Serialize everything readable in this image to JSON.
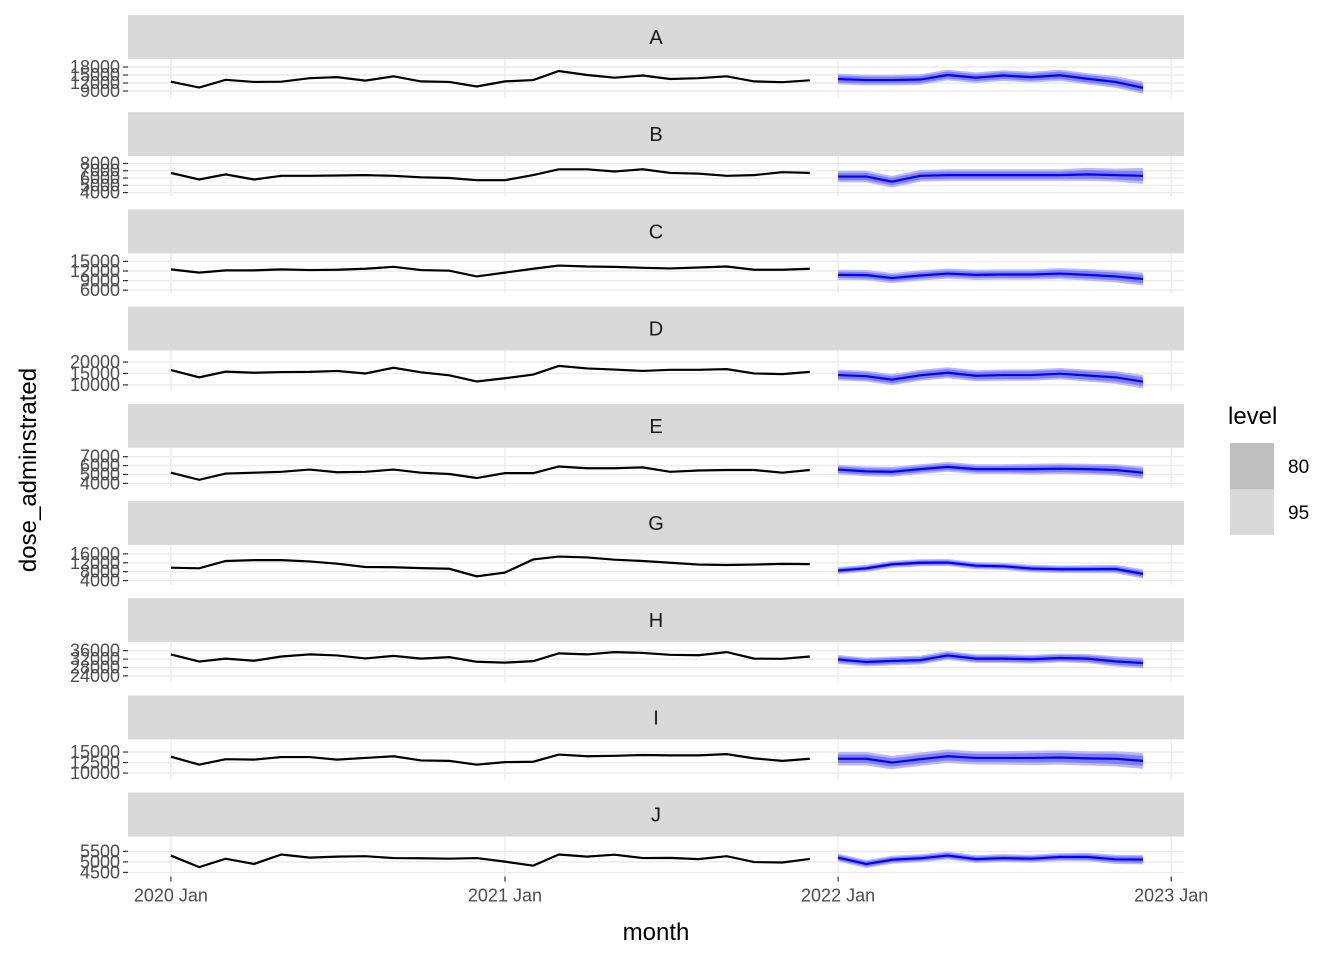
{
  "chart_data": {
    "type": "line",
    "xlabel": "month",
    "ylabel": "dose_adminstrated",
    "x_ticks": [
      "2020 Jan",
      "2021 Jan",
      "2022 Jan",
      "2023 Jan"
    ],
    "x_range": [
      "2019-11-15",
      "2023-01-15"
    ],
    "history_months": [
      "2020-01",
      "2020-02",
      "2020-03",
      "2020-04",
      "2020-05",
      "2020-06",
      "2020-07",
      "2020-08",
      "2020-09",
      "2020-10",
      "2020-11",
      "2020-12",
      "2021-01",
      "2021-02",
      "2021-03",
      "2021-04",
      "2021-05",
      "2021-06",
      "2021-07",
      "2021-08",
      "2021-09",
      "2021-10",
      "2021-11",
      "2021-12"
    ],
    "forecast_months": [
      "2022-01",
      "2022-02",
      "2022-03",
      "2022-04",
      "2022-05",
      "2022-06",
      "2022-07",
      "2022-08",
      "2022-09",
      "2022-10",
      "2022-11",
      "2022-12"
    ],
    "legend": {
      "title": "level",
      "position": "right",
      "items": [
        {
          "label": "80",
          "color": "#bebebe"
        },
        {
          "label": "95",
          "color": "#d9d9d9"
        }
      ]
    },
    "colors": {
      "history": "#000000",
      "forecast": "#0000ff",
      "band80": "#7f7ff0",
      "band95": "#b9b9f5",
      "strip": "#d9d9d9"
    },
    "grid": true,
    "panels": [
      {
        "label": "A",
        "y_ticks": [
          "9000",
          "12000",
          "15000",
          "18000"
        ],
        "ylim": [
          6000,
          21000
        ],
        "history": [
          12500,
          10300,
          13200,
          12400,
          12500,
          13800,
          14200,
          12900,
          14500,
          12600,
          12400,
          10700,
          12600,
          13100,
          16500,
          15000,
          14000,
          14800,
          13500,
          13800,
          14500,
          12600,
          12300,
          13000
        ],
        "forecast": [
          13500,
          13100,
          13100,
          13300,
          15000,
          14000,
          14800,
          14200,
          14900,
          13600,
          12400,
          10200
        ],
        "lo80": [
          12200,
          11800,
          11800,
          12000,
          13700,
          12700,
          13500,
          12900,
          13500,
          12200,
          11000,
          8700
        ],
        "hi80": [
          14800,
          14400,
          14400,
          14600,
          16300,
          15300,
          16100,
          15500,
          16300,
          15000,
          13800,
          11700
        ],
        "lo95": [
          11500,
          11100,
          11100,
          11300,
          13000,
          12000,
          12800,
          12200,
          12800,
          11500,
          10200,
          7900
        ],
        "hi95": [
          15500,
          15100,
          15100,
          15300,
          17000,
          16000,
          16800,
          16200,
          17000,
          15700,
          14600,
          12500
        ]
      },
      {
        "label": "B",
        "y_ticks": [
          "4000",
          "5000",
          "6000",
          "7000",
          "8000"
        ],
        "ylim": [
          3500,
          9000
        ],
        "history": [
          6700,
          5800,
          6500,
          5800,
          6300,
          6300,
          6350,
          6400,
          6300,
          6100,
          6000,
          5700,
          5700,
          6400,
          7200,
          7200,
          6900,
          7200,
          6700,
          6600,
          6300,
          6400,
          6800,
          6700
        ],
        "forecast": [
          6200,
          6200,
          5500,
          6300,
          6400,
          6400,
          6400,
          6400,
          6400,
          6500,
          6400,
          6300
        ],
        "lo80": [
          5700,
          5700,
          5000,
          5800,
          5900,
          5900,
          5900,
          5900,
          5900,
          5900,
          5800,
          5600
        ],
        "hi80": [
          6700,
          6700,
          6000,
          6800,
          6900,
          6900,
          6900,
          6900,
          6900,
          7100,
          7000,
          7000
        ],
        "lo95": [
          5400,
          5400,
          4700,
          5500,
          5600,
          5600,
          5600,
          5600,
          5600,
          5600,
          5500,
          5200
        ],
        "hi95": [
          7000,
          7000,
          6300,
          7100,
          7200,
          7200,
          7200,
          7200,
          7200,
          7400,
          7300,
          7400
        ]
      },
      {
        "label": "C",
        "y_ticks": [
          "6000",
          "9000",
          "12000",
          "15000"
        ],
        "ylim": [
          5000,
          17500
        ],
        "history": [
          12500,
          11500,
          12200,
          12200,
          12500,
          12300,
          12400,
          12700,
          13300,
          12300,
          12100,
          10300,
          11500,
          12700,
          13700,
          13400,
          13300,
          13000,
          12800,
          13100,
          13400,
          12400,
          12400,
          12700
        ],
        "forecast": [
          10800,
          10700,
          9800,
          10600,
          11200,
          10800,
          10900,
          10900,
          11200,
          10800,
          10300,
          9500
        ],
        "lo80": [
          9800,
          9700,
          8800,
          9600,
          10200,
          9800,
          9900,
          9900,
          10100,
          9600,
          9100,
          8200
        ],
        "hi80": [
          11800,
          11700,
          10800,
          11600,
          12200,
          11800,
          11900,
          11900,
          12300,
          12000,
          11500,
          10800
        ],
        "lo95": [
          9200,
          9100,
          8200,
          9000,
          9600,
          9200,
          9300,
          9300,
          9500,
          9000,
          8400,
          7500
        ],
        "hi95": [
          12400,
          12300,
          11400,
          12200,
          12800,
          12400,
          12500,
          12500,
          12900,
          12600,
          12200,
          11500
        ]
      },
      {
        "label": "D",
        "y_ticks": [
          "10000",
          "15000",
          "20000"
        ],
        "ylim": [
          7500,
          25000
        ],
        "history": [
          16500,
          13300,
          15800,
          15300,
          15600,
          15700,
          16100,
          15000,
          17500,
          15500,
          14200,
          11500,
          12900,
          14500,
          18300,
          17200,
          16700,
          16100,
          16600,
          16600,
          16900,
          15000,
          14700,
          15700
        ],
        "forecast": [
          14300,
          13800,
          12300,
          14200,
          15300,
          14000,
          14300,
          14300,
          14900,
          14100,
          13300,
          11400
        ],
        "lo80": [
          12700,
          12200,
          10700,
          12600,
          13700,
          12400,
          12600,
          12600,
          13200,
          12300,
          11400,
          9500
        ],
        "hi80": [
          15900,
          15400,
          13900,
          15800,
          16900,
          15600,
          16000,
          16000,
          16600,
          15900,
          15200,
          13300
        ],
        "lo95": [
          11900,
          11400,
          9900,
          11800,
          12900,
          11600,
          11800,
          11800,
          12400,
          11500,
          10500,
          8500
        ],
        "hi95": [
          16700,
          16200,
          14700,
          16600,
          17700,
          16400,
          16800,
          16800,
          17400,
          16700,
          16100,
          14300
        ]
      },
      {
        "label": "E",
        "y_ticks": [
          "4000",
          "5000",
          "6000",
          "7000"
        ],
        "ylim": [
          3500,
          8000
        ],
        "history": [
          5200,
          4400,
          5100,
          5200,
          5300,
          5550,
          5250,
          5300,
          5550,
          5200,
          5050,
          4600,
          5150,
          5150,
          5900,
          5700,
          5700,
          5800,
          5300,
          5450,
          5500,
          5500,
          5200,
          5500
        ],
        "forecast": [
          5550,
          5350,
          5300,
          5600,
          5850,
          5600,
          5600,
          5600,
          5650,
          5600,
          5500,
          5200
        ],
        "lo80": [
          5200,
          5000,
          4950,
          5250,
          5500,
          5250,
          5250,
          5200,
          5250,
          5200,
          5050,
          4750
        ],
        "hi80": [
          5900,
          5700,
          5650,
          5950,
          6200,
          5950,
          5950,
          6000,
          6050,
          6000,
          5950,
          5650
        ],
        "lo95": [
          5000,
          4800,
          4750,
          5050,
          5300,
          5050,
          5050,
          5000,
          5050,
          5000,
          4850,
          4500
        ],
        "hi95": [
          6100,
          5900,
          5850,
          6150,
          6400,
          6150,
          6150,
          6200,
          6250,
          6200,
          6150,
          5900
        ]
      },
      {
        "label": "G",
        "y_ticks": [
          "4000",
          "8000",
          "12000",
          "16000"
        ],
        "ylim": [
          2000,
          20000
        ],
        "history": [
          9800,
          9500,
          12800,
          13200,
          13200,
          12600,
          11600,
          10100,
          10000,
          9600,
          9300,
          5900,
          7600,
          13500,
          14800,
          14400,
          13400,
          12800,
          12000,
          11200,
          11000,
          11200,
          11500,
          11400
        ],
        "forecast": [
          8500,
          9500,
          11300,
          12000,
          12100,
          10700,
          10400,
          9400,
          9100,
          9100,
          9200,
          7000
        ],
        "lo80": [
          7500,
          8500,
          10300,
          11000,
          11100,
          9700,
          9400,
          8300,
          8000,
          8000,
          8000,
          5700
        ],
        "hi80": [
          9500,
          10500,
          12300,
          13000,
          13100,
          11700,
          11400,
          10500,
          10200,
          10200,
          10400,
          8300
        ],
        "lo95": [
          6900,
          7900,
          9700,
          10400,
          10500,
          9100,
          8800,
          7700,
          7400,
          7300,
          7300,
          4900
        ],
        "hi95": [
          10100,
          11100,
          12900,
          13600,
          13700,
          12300,
          12000,
          11100,
          10800,
          10900,
          11100,
          9100
        ]
      },
      {
        "label": "H",
        "y_ticks": [
          "24000",
          "28000",
          "32000",
          "36000"
        ],
        "ylim": [
          21000,
          40000
        ],
        "history": [
          34200,
          30800,
          32200,
          31200,
          33200,
          34200,
          33700,
          32300,
          33500,
          32200,
          32900,
          30700,
          30300,
          31000,
          34700,
          34200,
          35300,
          34900,
          34000,
          33800,
          35300,
          32200,
          32100,
          33200
        ],
        "forecast": [
          31800,
          30600,
          31100,
          31500,
          33700,
          32200,
          32200,
          31900,
          32500,
          32200,
          30900,
          30100
        ],
        "lo80": [
          30400,
          29200,
          29700,
          30100,
          32300,
          30800,
          30800,
          30500,
          31100,
          30700,
          29300,
          28400
        ],
        "hi80": [
          33200,
          32000,
          32500,
          32900,
          35100,
          33600,
          33600,
          33300,
          33900,
          33700,
          32500,
          31800
        ],
        "lo95": [
          29700,
          28500,
          29000,
          29400,
          31600,
          30100,
          30100,
          29800,
          30400,
          30000,
          28500,
          27500
        ],
        "hi95": [
          33900,
          32700,
          33200,
          33600,
          35800,
          34300,
          34300,
          34000,
          34600,
          34400,
          33300,
          32700
        ]
      },
      {
        "label": "I",
        "y_ticks": [
          "10000",
          "12500",
          "15000"
        ],
        "ylim": [
          8500,
          18000
        ],
        "history": [
          13900,
          12000,
          13300,
          13200,
          13800,
          13800,
          13200,
          13600,
          14000,
          13000,
          12900,
          12000,
          12600,
          12700,
          14400,
          14000,
          14100,
          14300,
          14200,
          14200,
          14500,
          13500,
          12900,
          13400
        ],
        "forecast": [
          13400,
          13400,
          12500,
          13300,
          14000,
          13600,
          13600,
          13600,
          13700,
          13500,
          13400,
          12900
        ],
        "lo80": [
          12400,
          12400,
          11500,
          12300,
          13000,
          12600,
          12600,
          12500,
          12600,
          12400,
          12200,
          11700
        ],
        "hi80": [
          14400,
          14400,
          13500,
          14300,
          15000,
          14600,
          14600,
          14700,
          14800,
          14600,
          14600,
          14100
        ],
        "lo95": [
          11800,
          11800,
          10900,
          11700,
          12400,
          12000,
          12000,
          11900,
          12000,
          11800,
          11600,
          11000
        ],
        "hi95": [
          15000,
          15000,
          14100,
          14900,
          15600,
          15200,
          15200,
          15300,
          15400,
          15200,
          15200,
          14800
        ]
      },
      {
        "label": "J",
        "y_ticks": [
          "4500",
          "5000",
          "5500"
        ],
        "ylim": [
          4300,
          6200
        ],
        "history": [
          5300,
          4750,
          5150,
          4900,
          5350,
          5200,
          5250,
          5270,
          5180,
          5170,
          5150,
          5180,
          5010,
          4820,
          5350,
          5250,
          5340,
          5180,
          5190,
          5130,
          5270,
          4990,
          4970,
          5140
        ],
        "forecast": [
          5200,
          4900,
          5100,
          5170,
          5300,
          5130,
          5180,
          5150,
          5230,
          5230,
          5120,
          5110
        ],
        "lo80": [
          5080,
          4780,
          4980,
          5050,
          5180,
          5010,
          5060,
          5030,
          5110,
          5100,
          4980,
          4960
        ],
        "hi80": [
          5320,
          5020,
          5220,
          5290,
          5420,
          5250,
          5300,
          5270,
          5350,
          5360,
          5260,
          5260
        ],
        "lo95": [
          5010,
          4710,
          4910,
          4980,
          5110,
          4940,
          4990,
          4960,
          5040,
          5030,
          4900,
          4880
        ],
        "hi95": [
          5390,
          5090,
          5290,
          5360,
          5490,
          5320,
          5370,
          5340,
          5420,
          5430,
          5340,
          5340
        ]
      }
    ]
  }
}
